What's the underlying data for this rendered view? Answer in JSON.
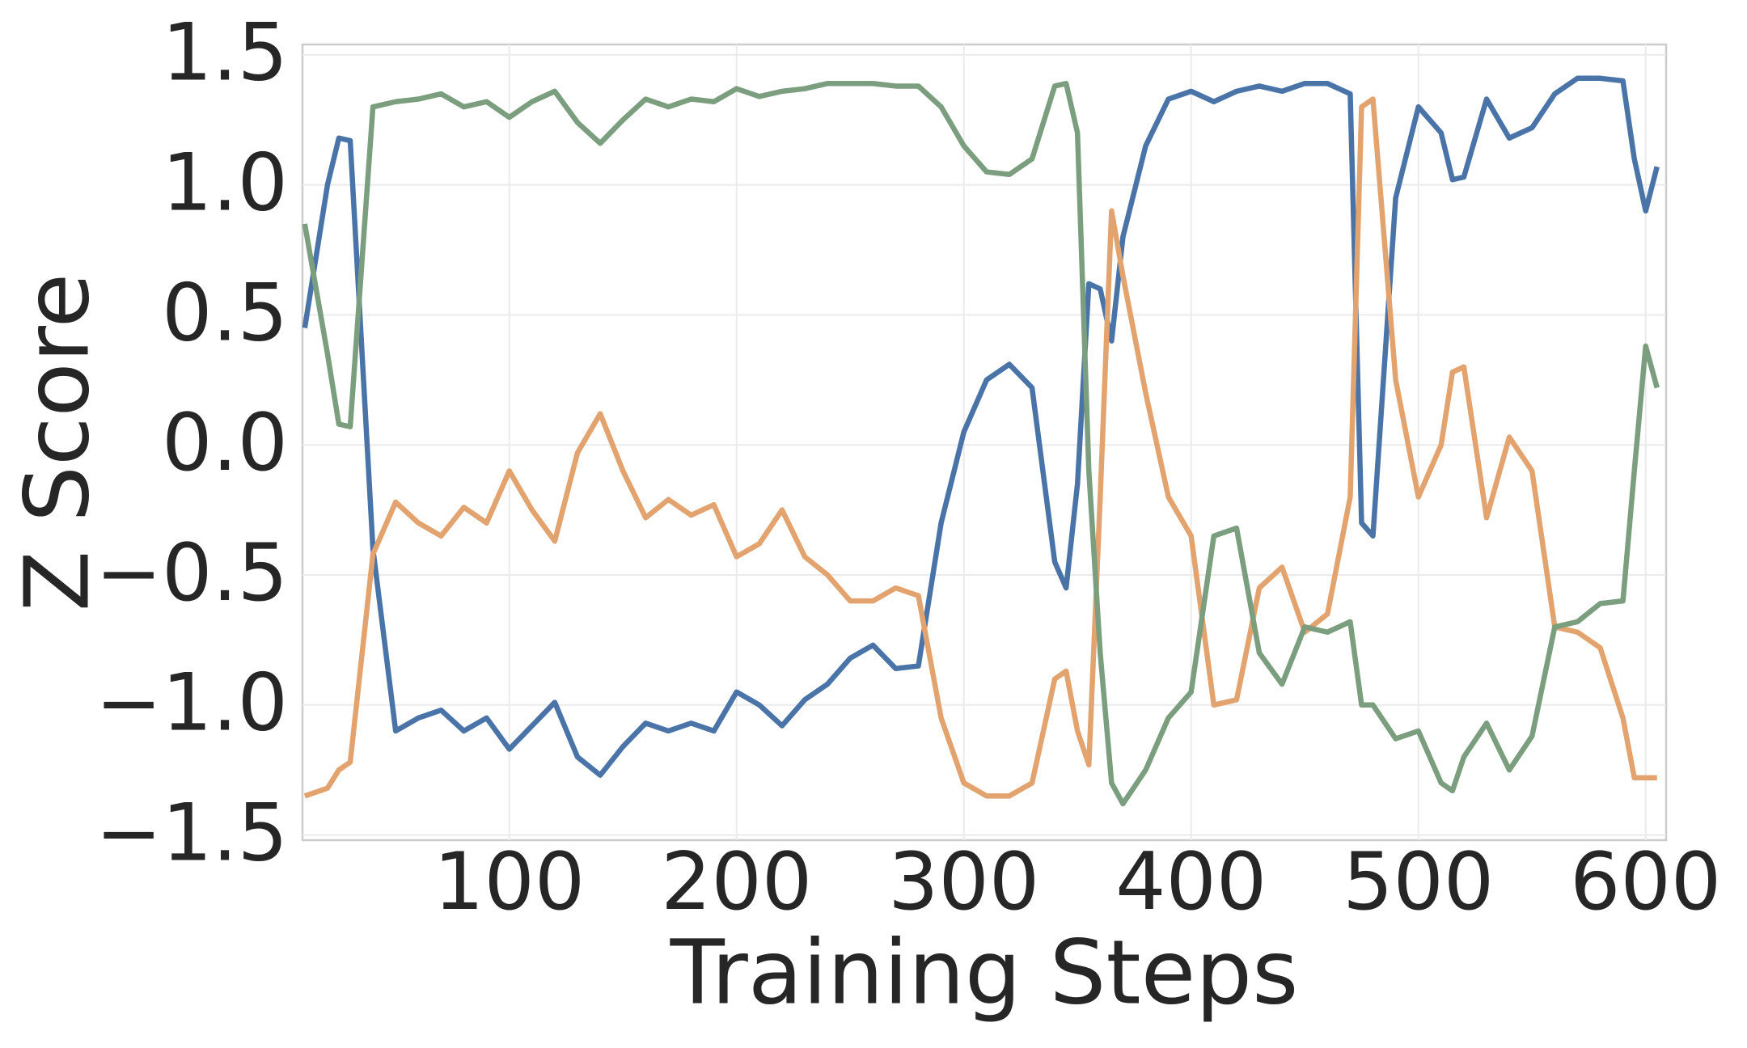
{
  "chart_data": {
    "type": "line",
    "xlabel": "Training Steps",
    "ylabel": "Z Score",
    "x": [
      10,
      20,
      25,
      30,
      40,
      50,
      60,
      70,
      80,
      90,
      100,
      110,
      120,
      130,
      140,
      150,
      160,
      170,
      180,
      190,
      200,
      210,
      220,
      230,
      240,
      250,
      260,
      270,
      280,
      290,
      300,
      310,
      320,
      330,
      340,
      345,
      350,
      355,
      360,
      365,
      370,
      380,
      390,
      400,
      410,
      420,
      430,
      440,
      450,
      460,
      470,
      475,
      480,
      490,
      500,
      510,
      515,
      520,
      530,
      540,
      550,
      560,
      570,
      580,
      590,
      595,
      600,
      605
    ],
    "series": [
      {
        "color": "#4a74a8",
        "values": [
          0.45,
          1.0,
          1.18,
          1.17,
          -0.4,
          -1.1,
          -1.05,
          -1.02,
          -1.1,
          -1.05,
          -1.17,
          -1.08,
          -0.99,
          -1.2,
          -1.27,
          -1.16,
          -1.07,
          -1.1,
          -1.07,
          -1.1,
          -0.95,
          -1.0,
          -1.08,
          -0.98,
          -0.92,
          -0.82,
          -0.77,
          -0.86,
          -0.85,
          -0.3,
          0.05,
          0.25,
          0.31,
          0.22,
          -0.45,
          -0.55,
          -0.15,
          0.62,
          0.6,
          0.4,
          0.8,
          1.15,
          1.33,
          1.36,
          1.32,
          1.36,
          1.38,
          1.36,
          1.39,
          1.39,
          1.35,
          -0.3,
          -0.35,
          0.95,
          1.3,
          1.2,
          1.02,
          1.03,
          1.33,
          1.18,
          1.22,
          1.35,
          1.41,
          1.41,
          1.4,
          1.1,
          0.9,
          1.07
        ]
      },
      {
        "color": "#e2a36f",
        "values": [
          -1.35,
          -1.32,
          -1.25,
          -1.22,
          -0.42,
          -0.22,
          -0.3,
          -0.35,
          -0.24,
          -0.3,
          -0.1,
          -0.25,
          -0.37,
          -0.03,
          0.12,
          -0.1,
          -0.28,
          -0.21,
          -0.27,
          -0.23,
          -0.43,
          -0.38,
          -0.25,
          -0.43,
          -0.5,
          -0.6,
          -0.6,
          -0.55,
          -0.58,
          -1.05,
          -1.3,
          -1.35,
          -1.35,
          -1.3,
          -0.9,
          -0.87,
          -1.1,
          -1.23,
          -0.2,
          0.9,
          0.65,
          0.2,
          -0.2,
          -0.35,
          -1.0,
          -0.98,
          -0.55,
          -0.47,
          -0.72,
          -0.65,
          -0.2,
          1.3,
          1.33,
          0.25,
          -0.2,
          0.0,
          0.28,
          0.3,
          -0.28,
          0.03,
          -0.1,
          -0.7,
          -0.72,
          -0.78,
          -1.05,
          -1.28,
          -1.28,
          -1.28
        ]
      },
      {
        "color": "#7a9e7e",
        "values": [
          0.85,
          0.35,
          0.08,
          0.07,
          1.3,
          1.32,
          1.33,
          1.35,
          1.3,
          1.32,
          1.26,
          1.32,
          1.36,
          1.24,
          1.16,
          1.25,
          1.33,
          1.3,
          1.33,
          1.32,
          1.37,
          1.34,
          1.36,
          1.37,
          1.39,
          1.39,
          1.39,
          1.38,
          1.38,
          1.3,
          1.15,
          1.05,
          1.04,
          1.1,
          1.38,
          1.39,
          1.2,
          -0.1,
          -0.8,
          -1.3,
          -1.38,
          -1.25,
          -1.05,
          -0.95,
          -0.35,
          -0.32,
          -0.8,
          -0.92,
          -0.7,
          -0.72,
          -0.68,
          -1.0,
          -1.0,
          -1.13,
          -1.1,
          -1.3,
          -1.33,
          -1.2,
          -1.07,
          -1.25,
          -1.12,
          -0.7,
          -0.68,
          -0.61,
          -0.6,
          -0.1,
          0.38,
          0.22
        ]
      }
    ],
    "xlim": [
      9,
      609
    ],
    "ylim": [
      -1.52,
      1.54
    ],
    "xticks": [
      100,
      200,
      300,
      400,
      500,
      600
    ],
    "yticks": [
      {
        "value": -1.5,
        "label": "−1.5"
      },
      {
        "value": -1.0,
        "label": "−1.0"
      },
      {
        "value": -0.5,
        "label": "−0.5"
      },
      {
        "value": 0,
        "label": "0.0"
      },
      0.5,
      {
        "value": 1,
        "label": "1.0"
      },
      1.5
    ],
    "grid": true
  }
}
